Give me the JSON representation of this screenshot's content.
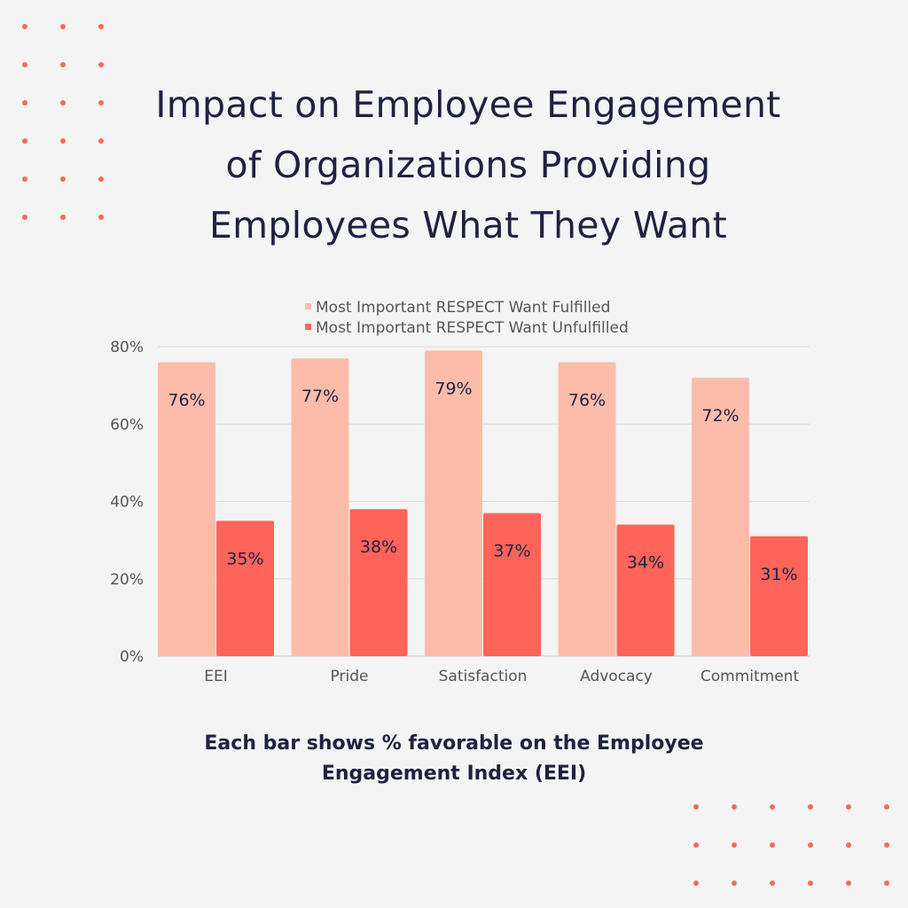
{
  "title": {
    "lines": [
      "Impact on Employee Engagement",
      "of Organizations Providing",
      "Employees What They Want"
    ]
  },
  "footnote": {
    "lines": [
      "Each bar shows % favorable on the Employee",
      "Engagement Index (EEI)"
    ]
  },
  "colors": {
    "background": "#f3f4f3",
    "text": "#1f2142",
    "fulfilled": "#fdbcaa",
    "unfulfilled": "#fe6459",
    "dots": "#f86a5a",
    "grid": "#d9dcdc",
    "axis_text": "#555555"
  },
  "chart_data": {
    "type": "bar",
    "categories": [
      "EEI",
      "Pride",
      "Satisfaction",
      "Advocacy",
      "Commitment"
    ],
    "series": [
      {
        "name": "Most Important RESPECT Want Fulfilled",
        "values": [
          76,
          77,
          79,
          76,
          72
        ],
        "labels": [
          "76%",
          "77%",
          "79%",
          "76%",
          "72%"
        ]
      },
      {
        "name": "Most Important RESPECT Want Unfulfilled",
        "values": [
          35,
          38,
          37,
          34,
          31
        ],
        "labels": [
          "35%",
          "38%",
          "37%",
          "34%",
          "31%"
        ]
      }
    ],
    "yticks": [
      {
        "value": 0,
        "label": "0%"
      },
      {
        "value": 20,
        "label": "20%"
      },
      {
        "value": 40,
        "label": "40%"
      },
      {
        "value": 60,
        "label": "60%"
      },
      {
        "value": 80,
        "label": "80%"
      }
    ],
    "ylim": [
      0,
      80
    ],
    "grid": true,
    "legend": "top-center"
  }
}
